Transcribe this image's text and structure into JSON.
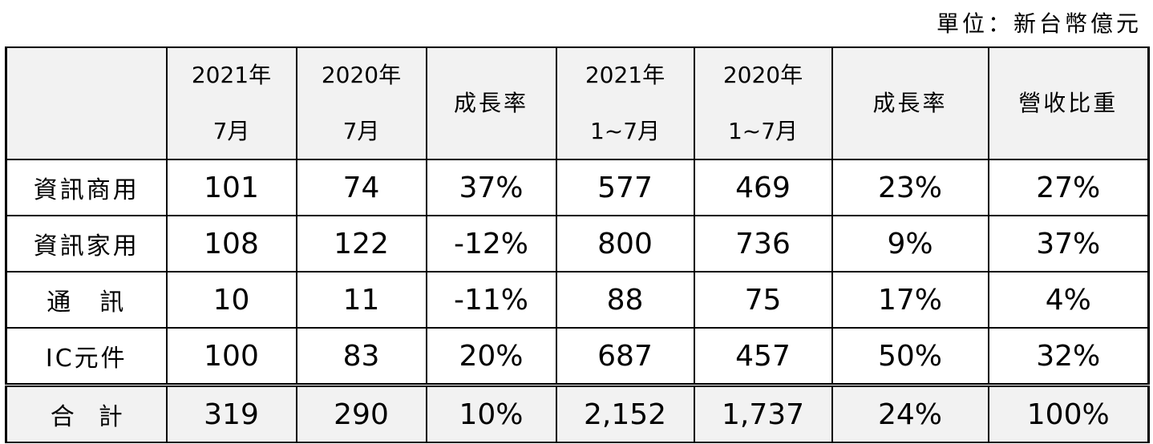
{
  "unit_note": "單位：新台幣億元",
  "headers": [
    {
      "line1": "",
      "line2": ""
    },
    {
      "line1": "2021年",
      "line2": "7月"
    },
    {
      "line1": "2020年",
      "line2": "7月"
    },
    {
      "line1": "成長率",
      "line2": ""
    },
    {
      "line1": "2021年",
      "line2": "1~7月"
    },
    {
      "line1": "2020年",
      "line2": "1~7月"
    },
    {
      "line1": "成長率",
      "line2": ""
    },
    {
      "line1": "營收比重",
      "line2": ""
    }
  ],
  "rows": [
    {
      "category": "資訊商用",
      "jul_2021": "101",
      "jul_2020": "74",
      "jul_growth": "37%",
      "ytd_2021": "577",
      "ytd_2020": "469",
      "ytd_growth": "23%",
      "revenue_share": "27%"
    },
    {
      "category": "資訊家用",
      "jul_2021": "108",
      "jul_2020": "122",
      "jul_growth": "-12%",
      "ytd_2021": "800",
      "ytd_2020": "736",
      "ytd_growth": "9%",
      "revenue_share": "37%"
    },
    {
      "category": "通　訊",
      "jul_2021": "10",
      "jul_2020": "11",
      "jul_growth": "-11%",
      "ytd_2021": "88",
      "ytd_2020": "75",
      "ytd_growth": "17%",
      "revenue_share": "4%"
    },
    {
      "category": "IC元件",
      "jul_2021": "100",
      "jul_2020": "83",
      "jul_growth": "20%",
      "ytd_2021": "687",
      "ytd_2020": "457",
      "ytd_growth": "50%",
      "revenue_share": "32%"
    }
  ],
  "total": {
    "category": "合　計",
    "jul_2021": "319",
    "jul_2020": "290",
    "jul_growth": "10%",
    "ytd_2021": "2,152",
    "ytd_2020": "1,737",
    "ytd_growth": "24%",
    "revenue_share": "100%"
  },
  "colors": {
    "header_bg": "#f2f2f2",
    "total_bg": "#f2f2f2",
    "border": "#000000"
  }
}
